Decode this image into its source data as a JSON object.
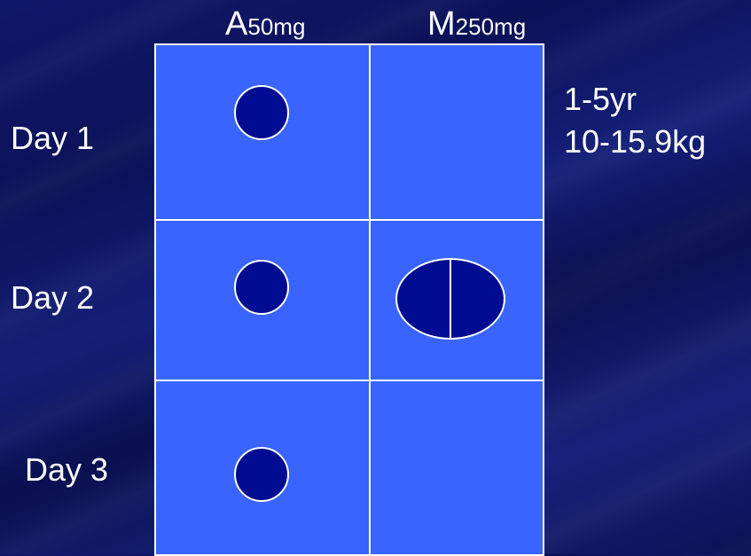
{
  "columns": [
    {
      "letter": "A",
      "dose": "50mg"
    },
    {
      "letter": "M",
      "dose": "250mg"
    }
  ],
  "rows": [
    "Day 1",
    "Day 2",
    "Day 3"
  ],
  "side_note": {
    "line1": "1-5yr",
    "line2": "10-15.9kg"
  },
  "doses": [
    {
      "day": "Day 1",
      "A": "1 tablet",
      "M": "none"
    },
    {
      "day": "Day 2",
      "A": "1 tablet",
      "M": "1 tablet (scored)"
    },
    {
      "day": "Day 3",
      "A": "1 tablet",
      "M": "none"
    }
  ],
  "colors": {
    "cell": "#3a64ff",
    "tablet": "#000c92",
    "lines": "#ffffff"
  }
}
